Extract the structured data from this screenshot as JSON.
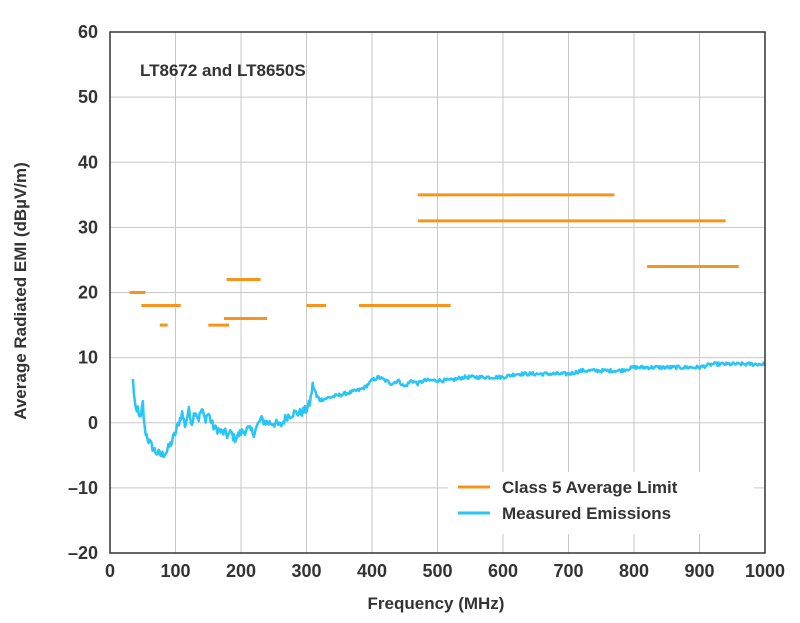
{
  "chart_data": {
    "type": "line",
    "annotation": "LT8672 and LT8650S",
    "xlabel": "Frequency (MHz)",
    "ylabel": "Average Radiated EMI (dBµV/m)",
    "xlim": [
      0,
      1000
    ],
    "ylim": [
      -20,
      60
    ],
    "x_ticks": [
      0,
      100,
      200,
      300,
      400,
      500,
      600,
      700,
      800,
      900,
      1000
    ],
    "y_ticks": [
      -20,
      -10,
      0,
      10,
      20,
      30,
      40,
      50,
      60
    ],
    "x_tick_labels": [
      "0",
      "100",
      "200",
      "300",
      "400",
      "500",
      "600",
      "700",
      "800",
      "900",
      "1000"
    ],
    "y_tick_labels": [
      "–20",
      "–10",
      "0",
      "10",
      "20",
      "30",
      "40",
      "50",
      "60"
    ],
    "grid": true,
    "legend_position": "bottom-right",
    "colors": {
      "limit": "#F7941D",
      "emissions": "#29C5F6",
      "grid": "#c8c8c8",
      "axis": "#333333"
    },
    "series": [
      {
        "name": "Class 5 Average Limit",
        "kind": "segments",
        "segments": [
          [
            30,
            54,
            20
          ],
          [
            48,
            108,
            18
          ],
          [
            76,
            88,
            15
          ],
          [
            150,
            182,
            15
          ],
          [
            174,
            240,
            16
          ],
          [
            178,
            230,
            22
          ],
          [
            300,
            330,
            18
          ],
          [
            380,
            520,
            18
          ],
          [
            470,
            770,
            35
          ],
          [
            470,
            940,
            31
          ],
          [
            820,
            960,
            24
          ]
        ]
      },
      {
        "name": "Measured Emissions",
        "kind": "line",
        "points": [
          [
            35,
            6.5
          ],
          [
            38,
            3
          ],
          [
            40,
            1
          ],
          [
            43,
            2.5
          ],
          [
            46,
            0
          ],
          [
            50,
            3
          ],
          [
            53,
            -1
          ],
          [
            58,
            -2.5
          ],
          [
            63,
            -3.5
          ],
          [
            70,
            -4.5
          ],
          [
            78,
            -5
          ],
          [
            86,
            -4.5
          ],
          [
            94,
            -3
          ],
          [
            100,
            -1.5
          ],
          [
            105,
            0
          ],
          [
            110,
            1.5
          ],
          [
            115,
            -0.5
          ],
          [
            120,
            2
          ],
          [
            125,
            0
          ],
          [
            130,
            2
          ],
          [
            135,
            0.5
          ],
          [
            140,
            2
          ],
          [
            145,
            0.5
          ],
          [
            150,
            1.5
          ],
          [
            155,
            0
          ],
          [
            160,
            -1
          ],
          [
            165,
            -1
          ],
          [
            170,
            -1.5
          ],
          [
            175,
            -1.5
          ],
          [
            180,
            -2
          ],
          [
            185,
            -1.5
          ],
          [
            190,
            -2.5
          ],
          [
            195,
            -2
          ],
          [
            200,
            -1.5
          ],
          [
            210,
            -1
          ],
          [
            220,
            -1.5
          ],
          [
            230,
            0.5
          ],
          [
            240,
            0
          ],
          [
            250,
            0
          ],
          [
            260,
            -0.5
          ],
          [
            270,
            1
          ],
          [
            280,
            1.5
          ],
          [
            290,
            1.5
          ],
          [
            300,
            2
          ],
          [
            305,
            3
          ],
          [
            310,
            6
          ],
          [
            315,
            4
          ],
          [
            320,
            3.5
          ],
          [
            340,
            4
          ],
          [
            360,
            4.5
          ],
          [
            380,
            5
          ],
          [
            390,
            5.5
          ],
          [
            400,
            6.5
          ],
          [
            410,
            7
          ],
          [
            420,
            6.5
          ],
          [
            430,
            6
          ],
          [
            440,
            6.5
          ],
          [
            450,
            5.5
          ],
          [
            460,
            6.5
          ],
          [
            470,
            6
          ],
          [
            480,
            6.5
          ],
          [
            490,
            6.5
          ],
          [
            500,
            6.5
          ],
          [
            520,
            6.5
          ],
          [
            540,
            7
          ],
          [
            560,
            7
          ],
          [
            580,
            7
          ],
          [
            600,
            7
          ],
          [
            620,
            7.5
          ],
          [
            640,
            7.5
          ],
          [
            660,
            7.5
          ],
          [
            680,
            7.5
          ],
          [
            700,
            7.5
          ],
          [
            720,
            8
          ],
          [
            740,
            8
          ],
          [
            760,
            8
          ],
          [
            780,
            8
          ],
          [
            800,
            8.5
          ],
          [
            820,
            8.5
          ],
          [
            840,
            8.5
          ],
          [
            860,
            8.5
          ],
          [
            880,
            8.5
          ],
          [
            900,
            8.5
          ],
          [
            920,
            9
          ],
          [
            940,
            9
          ],
          [
            960,
            9
          ],
          [
            980,
            9
          ],
          [
            1000,
            9
          ]
        ]
      }
    ]
  }
}
